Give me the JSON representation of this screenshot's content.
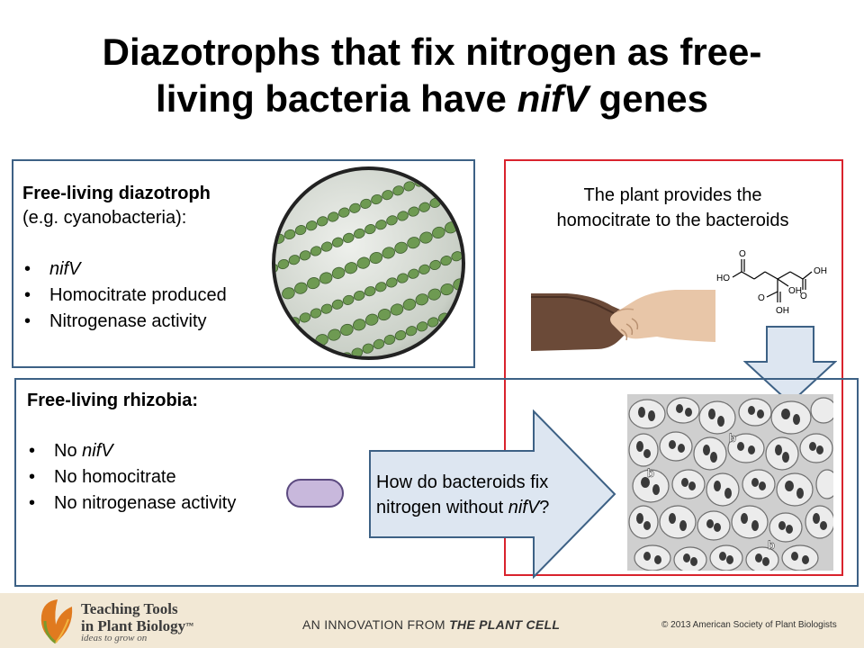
{
  "slide": {
    "title_part1": "Diazotrophs that fix nitrogen as free-",
    "title_part2": "living bacteria have ",
    "title_italic": "nifV",
    "title_part3": " genes"
  },
  "free_living": {
    "heading": "Free-living diazotroph",
    "subheading": "(e.g. cyanobacteria):",
    "bullets": [
      "nifV",
      "Homocitrate produced",
      "Nitrogenase activity"
    ]
  },
  "plant_panel": {
    "line1": "The plant provides the",
    "line2": "homocitrate to the bacteroids",
    "molecule_labels": {
      "ho_left": "HO",
      "o_left": "O",
      "oh_right": "OH",
      "o_right": "O",
      "o_bottom": "O",
      "oh_center": "OH",
      "oh_bottom": "OH"
    }
  },
  "rhizobia": {
    "heading": "Free-living rhizobia:",
    "bullets": [
      {
        "prefix": "No ",
        "italic": "nifV"
      },
      {
        "prefix": "No homocitrate",
        "italic": ""
      },
      {
        "prefix": "No nitrogenase activity",
        "italic": ""
      }
    ]
  },
  "arrow_text": {
    "line1": "How do bacteroids fix",
    "line2_prefix": "nitrogen without ",
    "line2_italic": "nifV",
    "line2_suffix": "?"
  },
  "micrograph_labels": [
    "b",
    "b",
    "b"
  ],
  "bullet_glyph": "•",
  "footer": {
    "logo_line1": "Teaching Tools",
    "logo_line2": "in Plant Biology",
    "logo_tm": "™",
    "tagline": "ideas to grow on",
    "innovation_prefix": "AN INNOVATION FROM ",
    "innovation_bold": "THE PLANT CELL",
    "copyright": "© 2013 American Society of Plant Biologists"
  },
  "colors": {
    "box_blue": "#3d6185",
    "box_red": "#d9232d",
    "arrow_fill": "#dde6f1",
    "arrow_stroke": "#3d6185",
    "bacterium_fill": "#c8b8dc",
    "footer_bg": "#f2e8d5"
  }
}
